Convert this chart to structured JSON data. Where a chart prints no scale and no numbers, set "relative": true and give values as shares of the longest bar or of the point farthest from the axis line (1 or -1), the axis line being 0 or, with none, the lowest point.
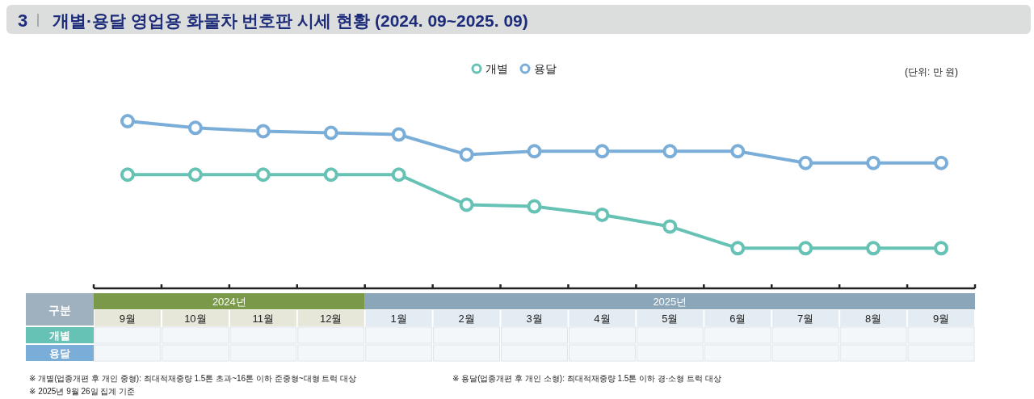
{
  "chart_data": {
    "type": "line",
    "title": "개별·용달 영업용 화물차 번호판 시세 현황 (2024. 09~2025. 09)",
    "relative": true,
    "marker": "circle",
    "line_style": "solid",
    "legend": "top",
    "grid": false,
    "categories": [
      "9월",
      "10월",
      "11월",
      "12월",
      "1월",
      "2월",
      "3월",
      "4월",
      "5월",
      "6월",
      "7월",
      "8월",
      "9월"
    ],
    "series": [
      {
        "name": "개별",
        "color": "#66c2b4",
        "values": [
          0.68,
          0.68,
          0.68,
          0.68,
          0.68,
          0.5,
          0.49,
          0.44,
          0.37,
          0.24,
          0.24,
          0.24,
          0.24
        ]
      },
      {
        "name": "용달",
        "color": "#7aaed8",
        "values": [
          1,
          0.96,
          0.94,
          0.93,
          0.92,
          0.8,
          0.82,
          0.82,
          0.82,
          0.82,
          0.75,
          0.75,
          0.75
        ]
      }
    ],
    "annotations": [
      "3",
      "(단위: 만 원)",
      "구분",
      "2024년",
      "2025년",
      "※ 개별(업종개편 후 개인 중형): 최대적재중량 1.5톤 초과~16톤 이하 준중형~대형 트럭 대상",
      "※ 용달(업종개편 후 개인 소형): 최대적재중량 1.5톤 이하 경·소형 트럭 대상",
      "※ 2025년 9월 26일 집계 기준"
    ]
  }
}
